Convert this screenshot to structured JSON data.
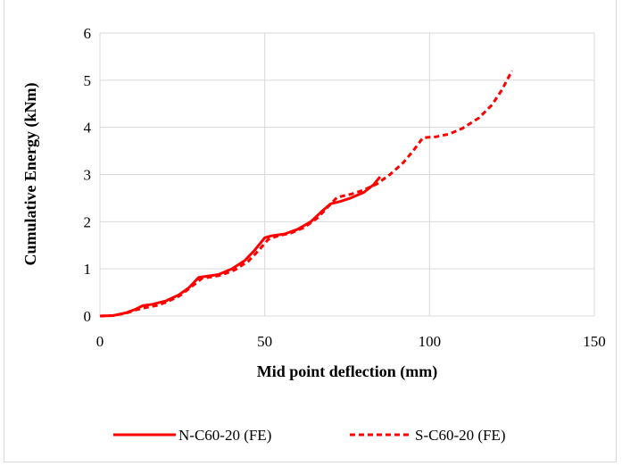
{
  "chart_data": {
    "type": "line",
    "title": "",
    "xlabel": "Mid point deflection (mm)",
    "ylabel": "Cumulative Energy (kNm)",
    "xlim": [
      0,
      150
    ],
    "ylim": [
      0,
      6
    ],
    "x_ticks": [
      0,
      50,
      100,
      150
    ],
    "y_ticks": [
      0,
      1,
      2,
      3,
      4,
      5,
      6
    ],
    "grid": "vertical-and-horizontal",
    "legend_position": "bottom",
    "series": [
      {
        "name": "N-C60-20 (FE)",
        "color": "#ff0000",
        "style": "solid",
        "points": [
          [
            0,
            0
          ],
          [
            4,
            0.01
          ],
          [
            8,
            0.07
          ],
          [
            11,
            0.15
          ],
          [
            13,
            0.22
          ],
          [
            16,
            0.25
          ],
          [
            20,
            0.32
          ],
          [
            24,
            0.45
          ],
          [
            27,
            0.6
          ],
          [
            30,
            0.82
          ],
          [
            33,
            0.85
          ],
          [
            36,
            0.88
          ],
          [
            40,
            1.0
          ],
          [
            44,
            1.18
          ],
          [
            47,
            1.4
          ],
          [
            50,
            1.66
          ],
          [
            52,
            1.7
          ],
          [
            56,
            1.74
          ],
          [
            60,
            1.84
          ],
          [
            64,
            2.0
          ],
          [
            67,
            2.2
          ],
          [
            70,
            2.38
          ],
          [
            73,
            2.43
          ],
          [
            76,
            2.5
          ],
          [
            80,
            2.62
          ],
          [
            83,
            2.78
          ],
          [
            85,
            2.95
          ]
        ]
      },
      {
        "name": "S-C60-20 (FE)",
        "color": "#ff0000",
        "style": "dashed",
        "points": [
          [
            0,
            0
          ],
          [
            4,
            0.01
          ],
          [
            8,
            0.06
          ],
          [
            11,
            0.13
          ],
          [
            14,
            0.18
          ],
          [
            17,
            0.22
          ],
          [
            20,
            0.29
          ],
          [
            24,
            0.42
          ],
          [
            27,
            0.58
          ],
          [
            31,
            0.8
          ],
          [
            34,
            0.83
          ],
          [
            37,
            0.87
          ],
          [
            41,
            0.98
          ],
          [
            45,
            1.16
          ],
          [
            48,
            1.38
          ],
          [
            51,
            1.62
          ],
          [
            54,
            1.7
          ],
          [
            58,
            1.76
          ],
          [
            62,
            1.88
          ],
          [
            66,
            2.08
          ],
          [
            69,
            2.3
          ],
          [
            72,
            2.52
          ],
          [
            76,
            2.58
          ],
          [
            80,
            2.67
          ],
          [
            84,
            2.8
          ],
          [
            88,
            3.0
          ],
          [
            92,
            3.25
          ],
          [
            95,
            3.5
          ],
          [
            98,
            3.78
          ],
          [
            102,
            3.8
          ],
          [
            106,
            3.86
          ],
          [
            110,
            3.98
          ],
          [
            115,
            4.2
          ],
          [
            119,
            4.48
          ],
          [
            122,
            4.8
          ],
          [
            125,
            5.2
          ]
        ]
      }
    ]
  }
}
